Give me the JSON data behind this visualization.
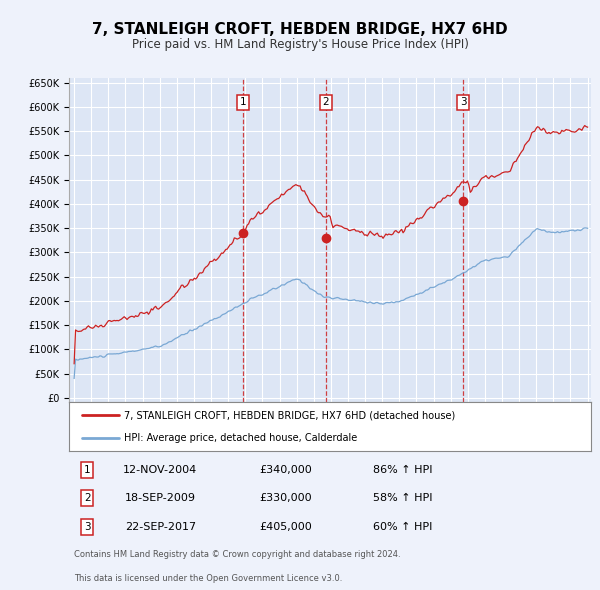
{
  "title": "7, STANLEIGH CROFT, HEBDEN BRIDGE, HX7 6HD",
  "subtitle": "Price paid vs. HM Land Registry's House Price Index (HPI)",
  "xlim_start": 1995,
  "xlim_end": 2025,
  "ylim": [
    0,
    650000
  ],
  "yticks": [
    0,
    50000,
    100000,
    150000,
    200000,
    250000,
    300000,
    350000,
    400000,
    450000,
    500000,
    550000,
    600000,
    650000
  ],
  "ytick_labels": [
    "£0",
    "£50K",
    "£100K",
    "£150K",
    "£200K",
    "£250K",
    "£300K",
    "£350K",
    "£400K",
    "£450K",
    "£500K",
    "£550K",
    "£600K",
    "£650K"
  ],
  "background_color": "#eef2fb",
  "plot_bg_color": "#dde6f5",
  "grid_color": "#ffffff",
  "hpi_line_color": "#7aa8d4",
  "price_line_color": "#cc2222",
  "vline_color": "#cc2222",
  "legend_price_label": "7, STANLEIGH CROFT, HEBDEN BRIDGE, HX7 6HD (detached house)",
  "legend_hpi_label": "HPI: Average price, detached house, Calderdale",
  "transactions": [
    {
      "num": 1,
      "date": "12-NOV-2004",
      "price": 340000,
      "pct": "86%",
      "year": 2004.87
    },
    {
      "num": 2,
      "date": "18-SEP-2009",
      "price": 330000,
      "pct": "58%",
      "year": 2009.71
    },
    {
      "num": 3,
      "date": "22-SEP-2017",
      "price": 405000,
      "pct": "60%",
      "year": 2017.73
    }
  ],
  "footer_line1": "Contains HM Land Registry data © Crown copyright and database right 2024.",
  "footer_line2": "This data is licensed under the Open Government Licence v3.0."
}
